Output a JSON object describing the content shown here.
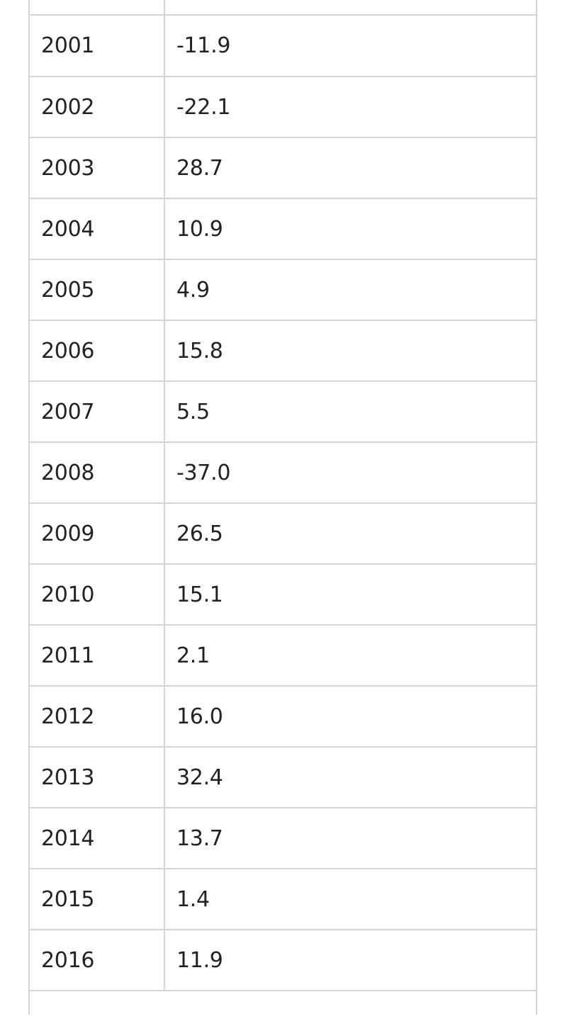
{
  "table": {
    "rows": [
      {
        "year": "2001",
        "value": "-11.9"
      },
      {
        "year": "2002",
        "value": "-22.1"
      },
      {
        "year": "2003",
        "value": "28.7"
      },
      {
        "year": "2004",
        "value": "10.9"
      },
      {
        "year": "2005",
        "value": "4.9"
      },
      {
        "year": "2006",
        "value": "15.8"
      },
      {
        "year": "2007",
        "value": "5.5"
      },
      {
        "year": "2008",
        "value": "-37.0"
      },
      {
        "year": "2009",
        "value": "26.5"
      },
      {
        "year": "2010",
        "value": "15.1"
      },
      {
        "year": "2011",
        "value": "2.1"
      },
      {
        "year": "2012",
        "value": "16.0"
      },
      {
        "year": "2013",
        "value": "32.4"
      },
      {
        "year": "2014",
        "value": "13.7"
      },
      {
        "year": "2015",
        "value": "1.4"
      },
      {
        "year": "2016",
        "value": "11.9"
      }
    ]
  }
}
